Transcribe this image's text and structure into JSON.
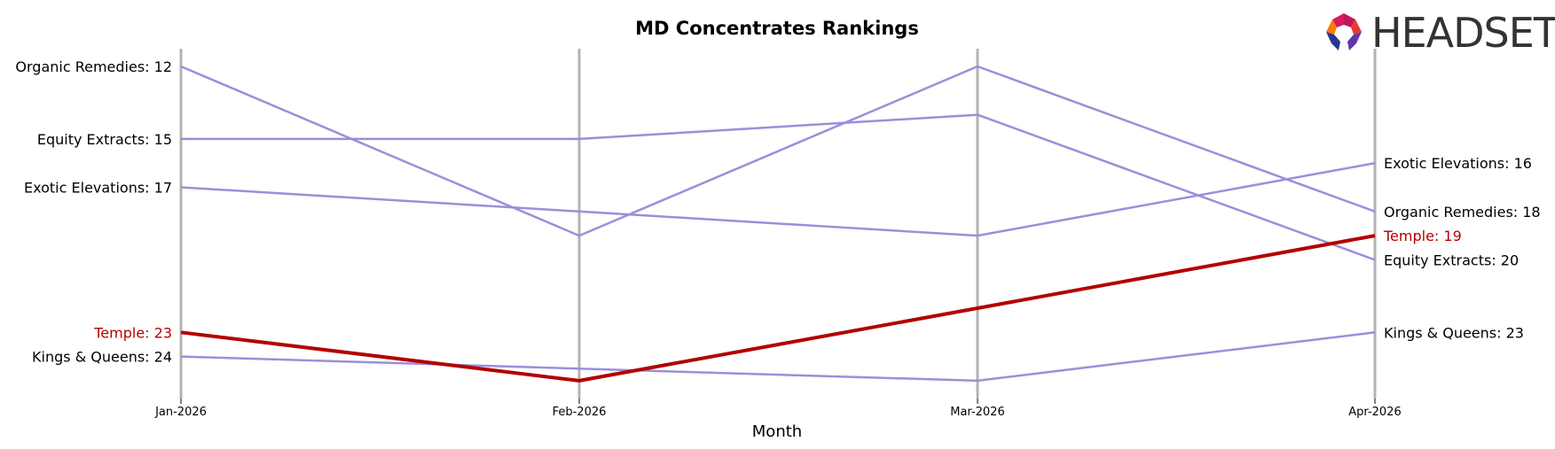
{
  "chart_data": {
    "type": "line",
    "title": "MD Concentrates Rankings",
    "xlabel": "Month",
    "ylabel": "",
    "categories": [
      "Jan-2026",
      "Feb-2026",
      "Mar-2026",
      "Apr-2026"
    ],
    "y_inverted": true,
    "ylim": [
      26,
      11
    ],
    "grid": "vertical lines at each month",
    "series": [
      {
        "name": "Organic Remedies",
        "values": [
          12,
          19,
          12,
          18
        ],
        "color": "#9b8fdb",
        "highlight": false,
        "start_label": "Organic Remedies: 12",
        "end_label": "Organic Remedies: 18"
      },
      {
        "name": "Equity Extracts",
        "values": [
          15,
          15,
          14,
          20
        ],
        "color": "#9b8fdb",
        "highlight": false,
        "start_label": "Equity Extracts: 15",
        "end_label": "Equity Extracts: 20"
      },
      {
        "name": "Exotic Elevations",
        "values": [
          17,
          18,
          19,
          16
        ],
        "color": "#9b8fdb",
        "highlight": false,
        "start_label": "Exotic Elevations: 17",
        "end_label": "Exotic Elevations: 16"
      },
      {
        "name": "Temple",
        "values": [
          23,
          25,
          22,
          19
        ],
        "color": "#b30000",
        "highlight": true,
        "start_label": "Temple: 23",
        "end_label": "Temple: 19"
      },
      {
        "name": "Kings & Queens",
        "values": [
          24,
          24.5,
          25,
          23
        ],
        "color": "#9b8fdb",
        "highlight": false,
        "start_label": "Kings & Queens: 24",
        "end_label": "Kings & Queens: 23"
      }
    ]
  },
  "logo": {
    "text": "HEADSET",
    "colors": [
      "#c2185b",
      "#e53935",
      "#f57c00",
      "#283593",
      "#5e35b1"
    ]
  }
}
